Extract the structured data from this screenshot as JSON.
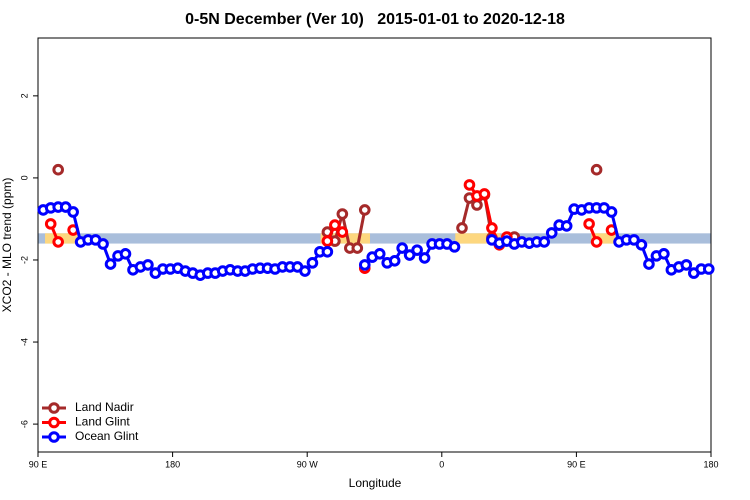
{
  "chart_data": {
    "type": "line",
    "title": "0-5N December (Ver 10)   2015-01-01 to 2020-12-18",
    "x_label": "Longitude",
    "y_label": "XCO2 - MLO trend (ppm)",
    "xlim": [
      90,
      540
    ],
    "ylim": [
      -6.68,
      3.41
    ],
    "xticks": [
      {
        "value": 90,
        "label": "90 E"
      },
      180,
      {
        "value": 270,
        "label": "90 W"
      },
      {
        "value": 360,
        "label": "0"
      },
      {
        "value": 450,
        "label": "90 E"
      },
      {
        "value": 540,
        "label": "180"
      }
    ],
    "yticks": [
      -6,
      -4,
      -2,
      0,
      2
    ],
    "legend": "bottom-left",
    "reference_band": {
      "ymin": -1.6,
      "ymax": -1.35,
      "color": "#a9bedb"
    },
    "land_spans": {
      "color": "#fdd77f",
      "xranges": [
        [
          94.7,
          118
        ],
        [
          279,
          312
        ],
        [
          369,
          399
        ],
        [
          460,
          476
        ]
      ]
    },
    "x": [
      93.5,
      98.5,
      103.5,
      108.5,
      113.5,
      118.5,
      123.5,
      128.5,
      133.5,
      138.5,
      143.5,
      148.5,
      153.5,
      158.5,
      163.5,
      168.5,
      173.5,
      178.5,
      183.5,
      188.5,
      193.5,
      198.5,
      203.5,
      208.5,
      213.5,
      218.5,
      223.5,
      228.5,
      233.5,
      238.5,
      243.5,
      248.5,
      253.5,
      258.5,
      263.5,
      268.5,
      273.5,
      278.5,
      283.5,
      288.5,
      293.5,
      298.5,
      303.5,
      308.5,
      313.5,
      318.5,
      323.5,
      328.5,
      333.5,
      338.5,
      343.5,
      348.5,
      353.5,
      358.5,
      363.5,
      368.5,
      373.5,
      378.5,
      383.5,
      388.5,
      393.5,
      398.5,
      403.5,
      408.5,
      413.5,
      418.5,
      423.5,
      428.5,
      433.5,
      438.5,
      443.5,
      448.5,
      453.5,
      458.5,
      463.5,
      468.5,
      473.5,
      478.5,
      483.5,
      488.5,
      493.5,
      498.5,
      503.5,
      508.5,
      513.5,
      518.5,
      523.5,
      528.5,
      533.5,
      538.5
    ],
    "series": [
      {
        "name": "Land Nadir",
        "color": "#a52a2a",
        "values": [
          null,
          null,
          0.2,
          null,
          null,
          null,
          null,
          null,
          null,
          null,
          null,
          null,
          null,
          null,
          null,
          null,
          null,
          null,
          null,
          null,
          null,
          null,
          null,
          null,
          null,
          null,
          null,
          null,
          null,
          null,
          null,
          null,
          null,
          null,
          null,
          null,
          null,
          null,
          -1.32,
          -1.54,
          -0.88,
          -1.71,
          -1.71,
          -0.78,
          null,
          null,
          null,
          null,
          null,
          null,
          null,
          null,
          null,
          null,
          null,
          null,
          -1.22,
          -0.49,
          -0.66,
          -0.41,
          -1.46,
          -1.61,
          null,
          -1.44,
          null,
          null,
          null,
          null,
          null,
          null,
          null,
          null,
          null,
          null,
          0.2,
          null,
          null,
          null,
          null,
          null,
          null,
          null,
          null,
          null,
          null,
          null,
          null,
          null,
          null,
          null
        ]
      },
      {
        "name": "Land Glint",
        "color": "#ff0000",
        "values": [
          null,
          -1.12,
          -1.56,
          null,
          -1.27,
          null,
          null,
          null,
          null,
          null,
          null,
          null,
          null,
          null,
          null,
          null,
          null,
          null,
          null,
          null,
          null,
          null,
          null,
          null,
          null,
          null,
          null,
          null,
          null,
          null,
          null,
          null,
          null,
          null,
          null,
          null,
          null,
          null,
          -1.54,
          -1.15,
          -1.32,
          null,
          null,
          -2.2,
          null,
          null,
          null,
          null,
          null,
          null,
          null,
          null,
          null,
          null,
          null,
          null,
          null,
          -0.17,
          -0.44,
          -0.39,
          -1.22,
          -1.63,
          -1.44,
          null,
          null,
          null,
          null,
          null,
          null,
          null,
          null,
          null,
          null,
          -1.12,
          -1.56,
          null,
          -1.27,
          null,
          null,
          null,
          null,
          null,
          null,
          null,
          null,
          null,
          null,
          null,
          null,
          null
        ]
      },
      {
        "name": "Ocean Glint",
        "color": "#0000ff",
        "values": [
          -0.78,
          -0.73,
          -0.71,
          -0.71,
          -0.83,
          -1.56,
          -1.51,
          -1.51,
          -1.61,
          -2.1,
          -1.9,
          -1.85,
          -2.24,
          -2.17,
          -2.12,
          -2.32,
          -2.22,
          -2.22,
          -2.2,
          -2.27,
          -2.32,
          -2.37,
          -2.32,
          -2.32,
          -2.27,
          -2.24,
          -2.27,
          -2.27,
          -2.22,
          -2.2,
          -2.2,
          -2.22,
          -2.17,
          -2.17,
          -2.17,
          -2.27,
          -2.07,
          -1.8,
          -1.8,
          null,
          null,
          null,
          null,
          -2.12,
          -1.93,
          -1.85,
          -2.07,
          -2.02,
          -1.71,
          -1.88,
          -1.76,
          -1.95,
          -1.61,
          -1.61,
          -1.61,
          -1.68,
          null,
          null,
          null,
          null,
          -1.51,
          -1.59,
          -1.54,
          -1.61,
          -1.56,
          -1.59,
          -1.56,
          -1.56,
          -1.34,
          -1.15,
          -1.17,
          -0.76,
          -0.78,
          -0.73,
          -0.73,
          -0.73,
          -0.83,
          -1.56,
          -1.51,
          -1.51,
          -1.63,
          -2.1,
          -1.9,
          -1.85,
          -2.24,
          -2.17,
          -2.12,
          -2.32,
          -2.22,
          -2.22
        ]
      }
    ]
  }
}
